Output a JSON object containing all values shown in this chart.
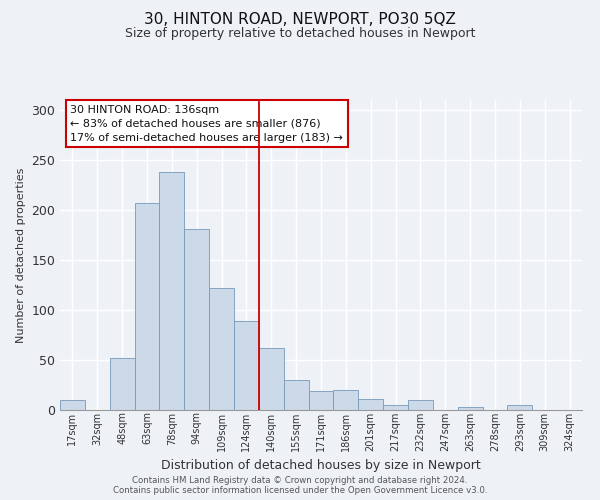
{
  "title": "30, HINTON ROAD, NEWPORT, PO30 5QZ",
  "subtitle": "Size of property relative to detached houses in Newport",
  "xlabel": "Distribution of detached houses by size in Newport",
  "ylabel": "Number of detached properties",
  "bar_color": "#ccd9e8",
  "bar_edge_color": "#7799bb",
  "categories": [
    "17sqm",
    "32sqm",
    "48sqm",
    "63sqm",
    "78sqm",
    "94sqm",
    "109sqm",
    "124sqm",
    "140sqm",
    "155sqm",
    "171sqm",
    "186sqm",
    "201sqm",
    "217sqm",
    "232sqm",
    "247sqm",
    "263sqm",
    "278sqm",
    "293sqm",
    "309sqm",
    "324sqm"
  ],
  "values": [
    10,
    0,
    52,
    207,
    238,
    181,
    122,
    89,
    62,
    30,
    19,
    20,
    11,
    5,
    10,
    0,
    3,
    0,
    5,
    0,
    0
  ],
  "vline_index": 8,
  "vline_color": "#cc0000",
  "annotation_title": "30 HINTON ROAD: 136sqm",
  "annotation_line1": "← 83% of detached houses are smaller (876)",
  "annotation_line2": "17% of semi-detached houses are larger (183) →",
  "annotation_box_facecolor": "#ffffff",
  "annotation_box_edgecolor": "#cc0000",
  "ylim": [
    0,
    310
  ],
  "yticks": [
    0,
    50,
    100,
    150,
    200,
    250,
    300
  ],
  "footer1": "Contains HM Land Registry data © Crown copyright and database right 2024.",
  "footer2": "Contains public sector information licensed under the Open Government Licence v3.0.",
  "background_color": "#eef2f7",
  "grid_color": "#ffffff",
  "title_fontsize": 11,
  "subtitle_fontsize": 9,
  "tick_fontsize": 7,
  "ylabel_fontsize": 8,
  "xlabel_fontsize": 9
}
